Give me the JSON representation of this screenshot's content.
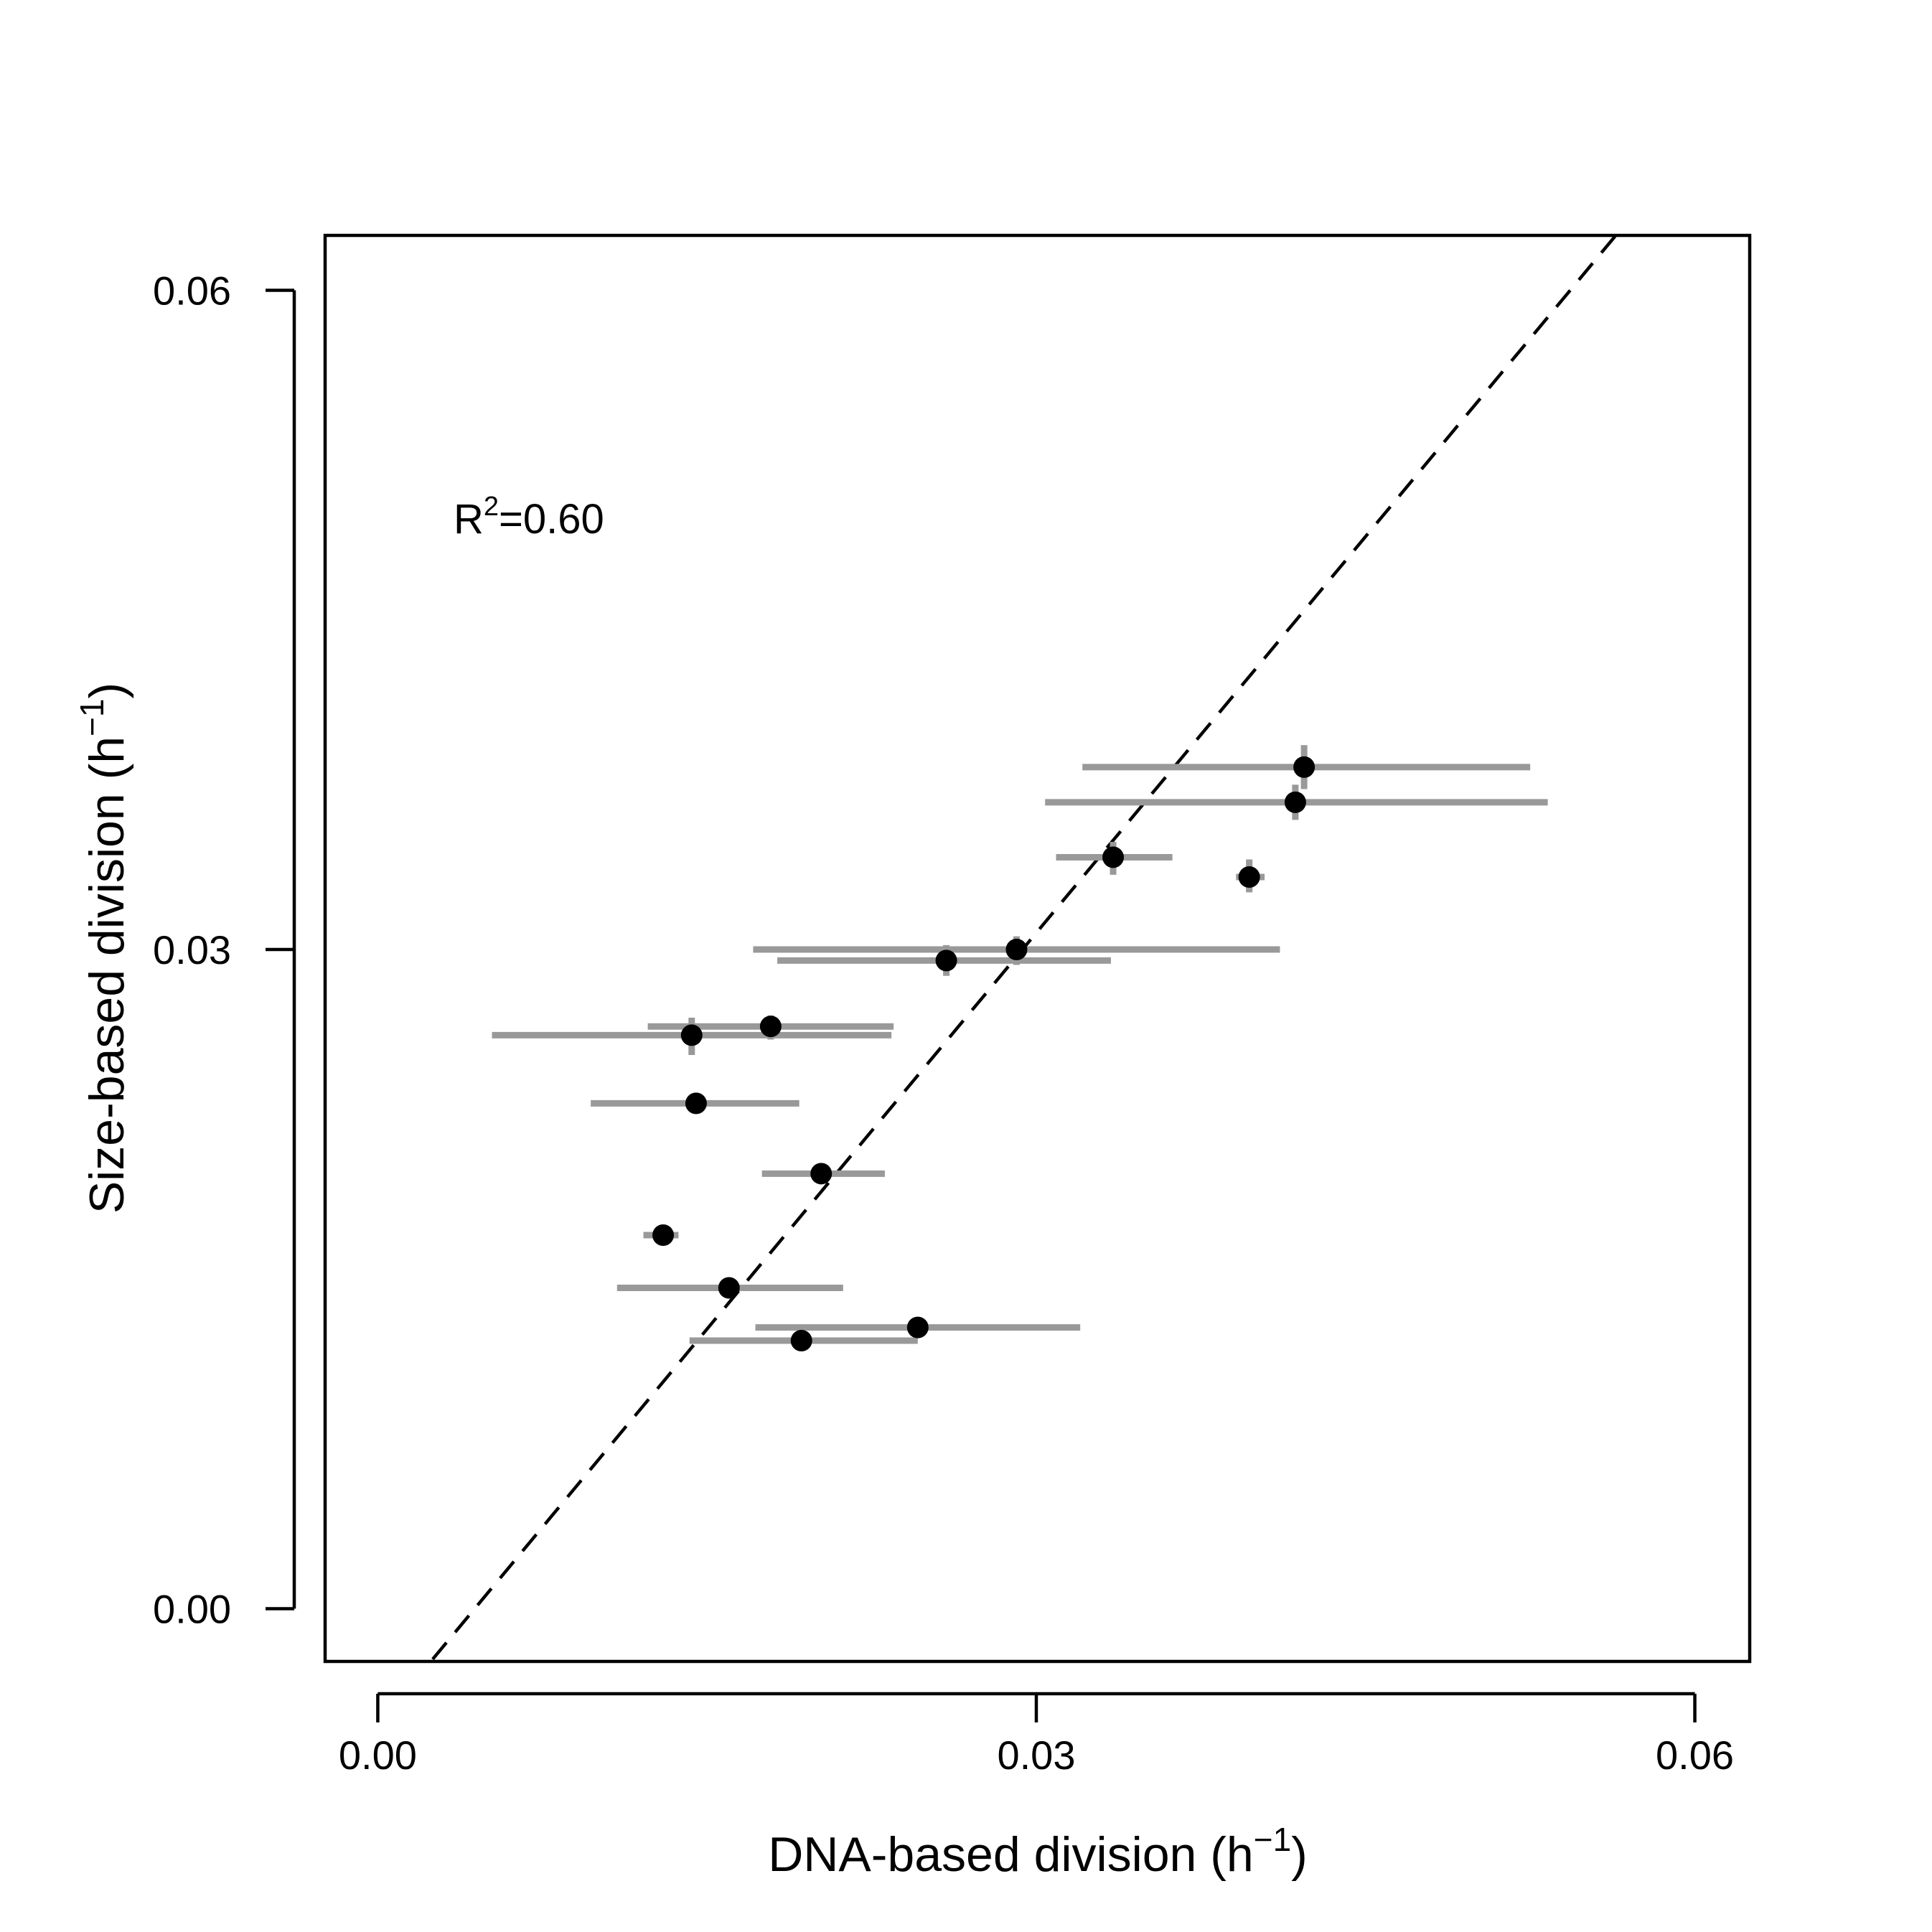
{
  "chart_data": {
    "type": "scatter",
    "title": "",
    "xlabel": "DNA-based division (h",
    "xlabel_sup": "−1",
    "xlabel_close": ")",
    "ylabel": "Size-based division (h",
    "ylabel_sup": "−1",
    "ylabel_close": ")",
    "xlim": [
      -0.0024,
      0.0625
    ],
    "ylim": [
      -0.0024,
      0.0625
    ],
    "xticks": [
      0.0,
      0.03,
      0.06
    ],
    "xtick_labels": [
      "0.00",
      "0.03",
      "0.06"
    ],
    "yticks": [
      0.0,
      0.03,
      0.06
    ],
    "ytick_labels": [
      "0.00",
      "0.03",
      "0.06"
    ],
    "annotation": {
      "prefix": "R",
      "sup": "2",
      "suffix": "=0.60",
      "x": 0.0035,
      "y": 0.0495
    },
    "reference_line": {
      "style": "dashed",
      "x": [
        0.0025,
        0.0564
      ],
      "y": [
        -0.0023,
        0.0625
      ]
    },
    "points": [
      {
        "x": 0.0422,
        "y": 0.0383,
        "xerr": [
          0.0321,
          0.0525
        ],
        "yerr": [
          0.0373,
          0.0393
        ]
      },
      {
        "x": 0.0418,
        "y": 0.0367,
        "xerr": [
          0.0304,
          0.0533
        ],
        "yerr": [
          0.0359,
          0.0375
        ]
      },
      {
        "x": 0.0335,
        "y": 0.0342,
        "xerr": [
          0.0309,
          0.0362
        ],
        "yerr": [
          0.0334,
          0.0349
        ]
      },
      {
        "x": 0.0397,
        "y": 0.0333,
        "xerr": [
          0.0391,
          0.0404
        ],
        "yerr": [
          0.0326,
          0.0341
        ]
      },
      {
        "x": 0.0291,
        "y": 0.03,
        "xerr": [
          0.0171,
          0.0411
        ],
        "yerr": [
          0.0293,
          0.0306
        ]
      },
      {
        "x": 0.0259,
        "y": 0.0295,
        "xerr": [
          0.0182,
          0.0334
        ],
        "yerr": [
          0.0288,
          0.0302
        ]
      },
      {
        "x": 0.0179,
        "y": 0.0265,
        "xerr": [
          0.0123,
          0.0235
        ],
        "yerr": [
          0.0259,
          0.027
        ]
      },
      {
        "x": 0.0143,
        "y": 0.0261,
        "xerr": [
          0.0052,
          0.0234
        ],
        "yerr": [
          0.0252,
          0.0269
        ]
      },
      {
        "x": 0.0145,
        "y": 0.023,
        "xerr": [
          0.0097,
          0.0192
        ],
        "yerr": [
          0.0226,
          0.0233
        ]
      },
      {
        "x": 0.0202,
        "y": 0.0198,
        "xerr": [
          0.0175,
          0.0231
        ],
        "yerr": [
          0.0196,
          0.0201
        ]
      },
      {
        "x": 0.013,
        "y": 0.017,
        "xerr": [
          0.0121,
          0.0137
        ],
        "yerr": [
          0.0169,
          0.0172
        ]
      },
      {
        "x": 0.016,
        "y": 0.0146,
        "xerr": [
          0.0109,
          0.0212
        ],
        "yerr": [
          0.0145,
          0.0148
        ]
      },
      {
        "x": 0.0246,
        "y": 0.0128,
        "xerr": [
          0.0172,
          0.032
        ],
        "yerr": [
          0.0126,
          0.013
        ]
      },
      {
        "x": 0.0193,
        "y": 0.0122,
        "xerr": [
          0.0142,
          0.0246
        ],
        "yerr": [
          0.012,
          0.0124
        ]
      }
    ],
    "colors": {
      "point": "#000000",
      "error_bar": "#999999",
      "axis": "#000000",
      "reference_line": "#000000"
    },
    "grid": false,
    "legend": "none"
  }
}
